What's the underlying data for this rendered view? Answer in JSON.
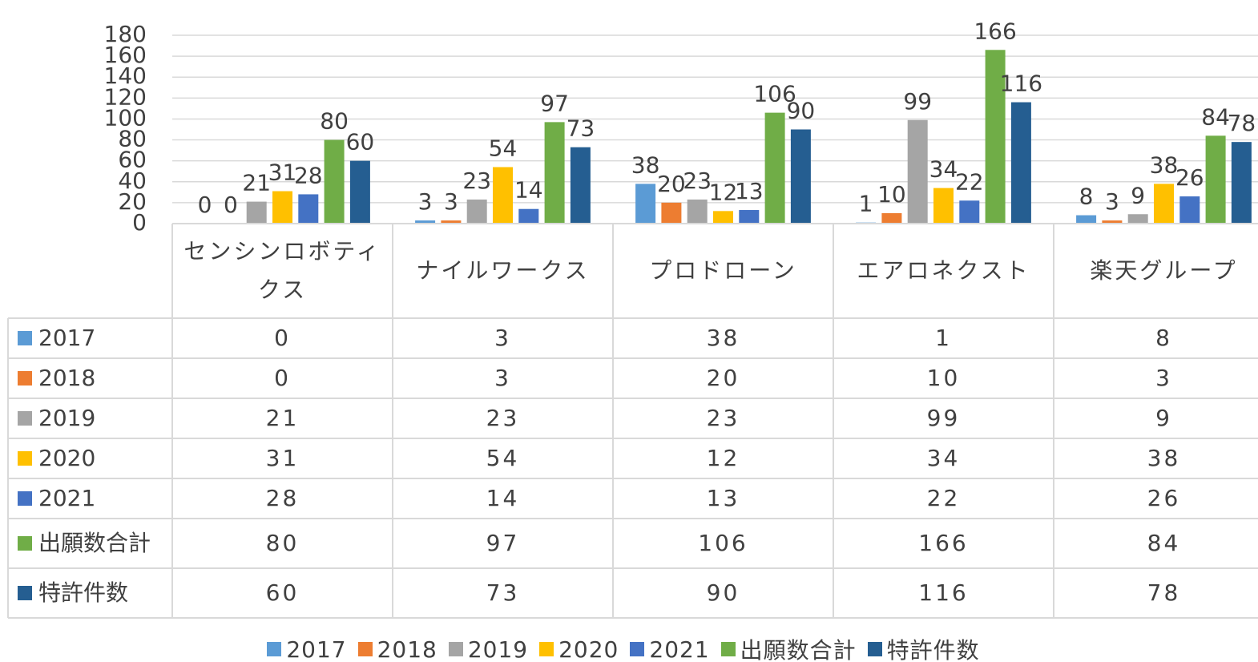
{
  "chart_data": {
    "type": "bar",
    "categories": [
      "センシンロボティクス",
      "ナイルワークス",
      "プロドローン",
      "エアロネクスト",
      "楽天グループ"
    ],
    "series": [
      {
        "name": "2017",
        "color": "#5b9bd5",
        "values": [
          0,
          3,
          38,
          1,
          8
        ]
      },
      {
        "name": "2018",
        "color": "#ed7d31",
        "values": [
          0,
          3,
          20,
          10,
          3
        ]
      },
      {
        "name": "2019",
        "color": "#a5a5a5",
        "values": [
          21,
          23,
          23,
          99,
          9
        ]
      },
      {
        "name": "2020",
        "color": "#ffc000",
        "values": [
          31,
          54,
          12,
          34,
          38
        ]
      },
      {
        "name": "2021",
        "color": "#4472c4",
        "values": [
          28,
          14,
          13,
          22,
          26
        ]
      },
      {
        "name": "出願数合計",
        "color": "#70ad47",
        "values": [
          80,
          97,
          106,
          166,
          84
        ]
      },
      {
        "name": "特許件数",
        "color": "#255e91",
        "values": [
          60,
          73,
          90,
          116,
          78
        ]
      }
    ],
    "ylim": [
      0,
      180
    ],
    "yticks": [
      0,
      20,
      40,
      60,
      80,
      100,
      120,
      140,
      160,
      180
    ],
    "grid": true,
    "legend": "bottom"
  }
}
